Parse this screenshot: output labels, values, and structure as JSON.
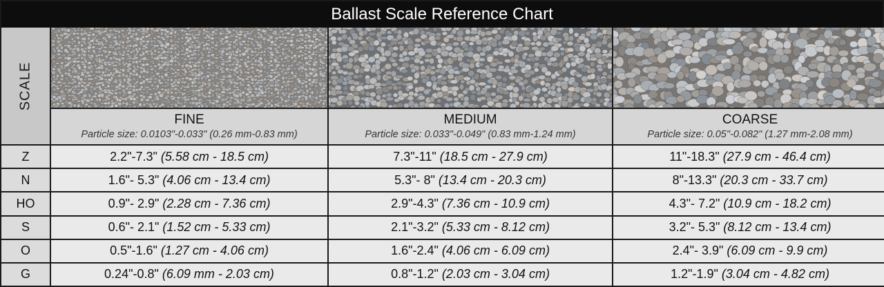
{
  "title": "Ballast Scale Reference Chart",
  "scale_header": "SCALE",
  "grades": [
    {
      "name": "FINE",
      "particle_size": "Particle size: 0.0103\"-0.033\" (0.26 mm-0.83 mm)",
      "texture_icon": "fine-gravel-texture"
    },
    {
      "name": "MEDIUM",
      "particle_size": "Particle size: 0.033\"-0.049\" (0.83 mm-1.24 mm)",
      "texture_icon": "medium-gravel-texture"
    },
    {
      "name": "COARSE",
      "particle_size": "Particle size: 0.05\"-0.082\" (1.27 mm-2.08 mm)",
      "texture_icon": "coarse-gravel-texture"
    }
  ],
  "rows": [
    {
      "scale": "Z",
      "values": [
        {
          "imperial": "2.2\"-7.3\"",
          "metric": "(5.58 cm - 18.5 cm)"
        },
        {
          "imperial": "7.3\"-11\"",
          "metric": "(18.5 cm - 27.9 cm)"
        },
        {
          "imperial": "11\"-18.3\"",
          "metric": "(27.9 cm - 46.4 cm)"
        }
      ]
    },
    {
      "scale": "N",
      "values": [
        {
          "imperial": "1.6\"- 5.3\"",
          "metric": "(4.06 cm - 13.4 cm)"
        },
        {
          "imperial": "5.3\"- 8\"",
          "metric": "(13.4 cm - 20.3 cm)"
        },
        {
          "imperial": "8\"-13.3\"",
          "metric": "(20.3 cm - 33.7 cm)"
        }
      ]
    },
    {
      "scale": "HO",
      "values": [
        {
          "imperial": "0.9\"- 2.9\"",
          "metric": "(2.28 cm - 7.36 cm)"
        },
        {
          "imperial": "2.9\"-4.3\"",
          "metric": "(7.36 cm - 10.9 cm)"
        },
        {
          "imperial": "4.3\"- 7.2\"",
          "metric": "(10.9 cm - 18.2 cm)"
        }
      ]
    },
    {
      "scale": "S",
      "values": [
        {
          "imperial": "0.6\"- 2.1\"",
          "metric": "(1.52 cm - 5.33 cm)"
        },
        {
          "imperial": "2.1\"-3.2\"",
          "metric": "(5.33 cm - 8.12 cm)"
        },
        {
          "imperial": "3.2\"- 5.3\"",
          "metric": "(8.12 cm - 13.4 cm)"
        }
      ]
    },
    {
      "scale": "O",
      "values": [
        {
          "imperial": "0.5\"-1.6\"",
          "metric": "(1.27 cm - 4.06 cm)"
        },
        {
          "imperial": "1.6\"-2.4\"",
          "metric": "(4.06 cm - 6.09 cm)"
        },
        {
          "imperial": "2.4\"- 3.9\"",
          "metric": "(6.09 cm - 9.9 cm)"
        }
      ]
    },
    {
      "scale": "G",
      "values": [
        {
          "imperial": "0.24\"-0.8\"",
          "metric": "(6.09 mm - 2.03 cm)"
        },
        {
          "imperial": "0.8\"-1.2\"",
          "metric": "(2.03 cm - 3.04 cm)"
        },
        {
          "imperial": "1.2\"-1.9\"",
          "metric": "(3.04 cm - 4.82 cm)"
        }
      ]
    }
  ],
  "colors": {
    "title_bar": "#0d0d0d",
    "header_bg": "#d6d6d6",
    "cell_bg": "#eaeaea",
    "grid_line": "#1a1a1a"
  }
}
